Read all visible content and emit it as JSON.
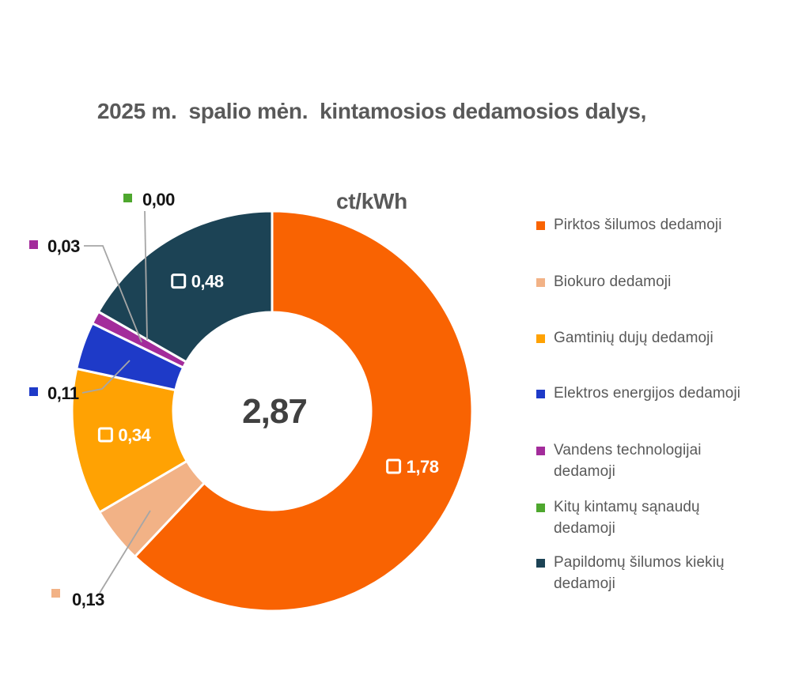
{
  "title": {
    "line1": "2025 m.  spalio mėn.  kintamosios dedamosios dalys,",
    "line2": "ct/kWh"
  },
  "chart_data": {
    "type": "pie",
    "subtype": "donut",
    "title": "2025 m. spalio mėn. kintamosios dedamosios dalys, ct/kWh",
    "center_label": "2,87",
    "total": 2.87,
    "legend_position": "right",
    "start_angle_deg": 0,
    "direction": "clockwise",
    "slices": [
      {
        "id": "pirktos-silumos",
        "name": "Pirktos šilumos dedamoji",
        "legend_lines": [
          "Pirktos šilumos dedamoji"
        ],
        "value": 1.78,
        "label": "1,78",
        "color": "#F96302",
        "label_placement": "inside"
      },
      {
        "id": "biokuro",
        "name": "Biokuro dedamoji",
        "legend_lines": [
          "Biokuro dedamoji"
        ],
        "value": 0.13,
        "label": "0,13",
        "color": "#F2B286",
        "label_placement": "outside"
      },
      {
        "id": "gamtiniu-duju",
        "name": "Gamtinių dujų dedamoji",
        "legend_lines": [
          "Gamtinių dujų dedamoji"
        ],
        "value": 0.34,
        "label": "0,34",
        "color": "#FFA203",
        "label_placement": "inside"
      },
      {
        "id": "elektros-energijos",
        "name": "Elektros energijos dedamoji",
        "legend_lines": [
          "Elektros energijos dedamoji"
        ],
        "value": 0.11,
        "label": "0,11",
        "color": "#1E3AC8",
        "label_placement": "outside"
      },
      {
        "id": "vandens-technologijai",
        "name": "Vandens technologijai dedamoji",
        "legend_lines": [
          "Vandens technologijai",
          "dedamoji"
        ],
        "value": 0.03,
        "label": "0,03",
        "color": "#A32C9B",
        "label_placement": "outside"
      },
      {
        "id": "kitu-kintamu-sanaudu",
        "name": "Kitų kintamų sąnaudų dedamoji",
        "legend_lines": [
          "Kitų kintamų sąnaudų",
          "dedamoji"
        ],
        "value": 0.0,
        "label": "0,00",
        "color": "#4EA72E",
        "label_placement": "outside"
      },
      {
        "id": "papildomu-silumos-kiekiu",
        "name": "Papildomų šilumos kiekių dedamoji",
        "legend_lines": [
          "Papildomų šilumos kiekių",
          "dedamoji"
        ],
        "value": 0.48,
        "label": "0,48",
        "color": "#1C4355",
        "label_placement": "inside"
      }
    ],
    "colors": {
      "title_text": "#595959",
      "legend_text": "#595959",
      "center_text": "#404040",
      "outside_label_text": "#141414",
      "inside_label_text": "#FFFFFF",
      "leader_line": "#A6A6A6",
      "slice_gap": "#FFFFFF"
    }
  }
}
